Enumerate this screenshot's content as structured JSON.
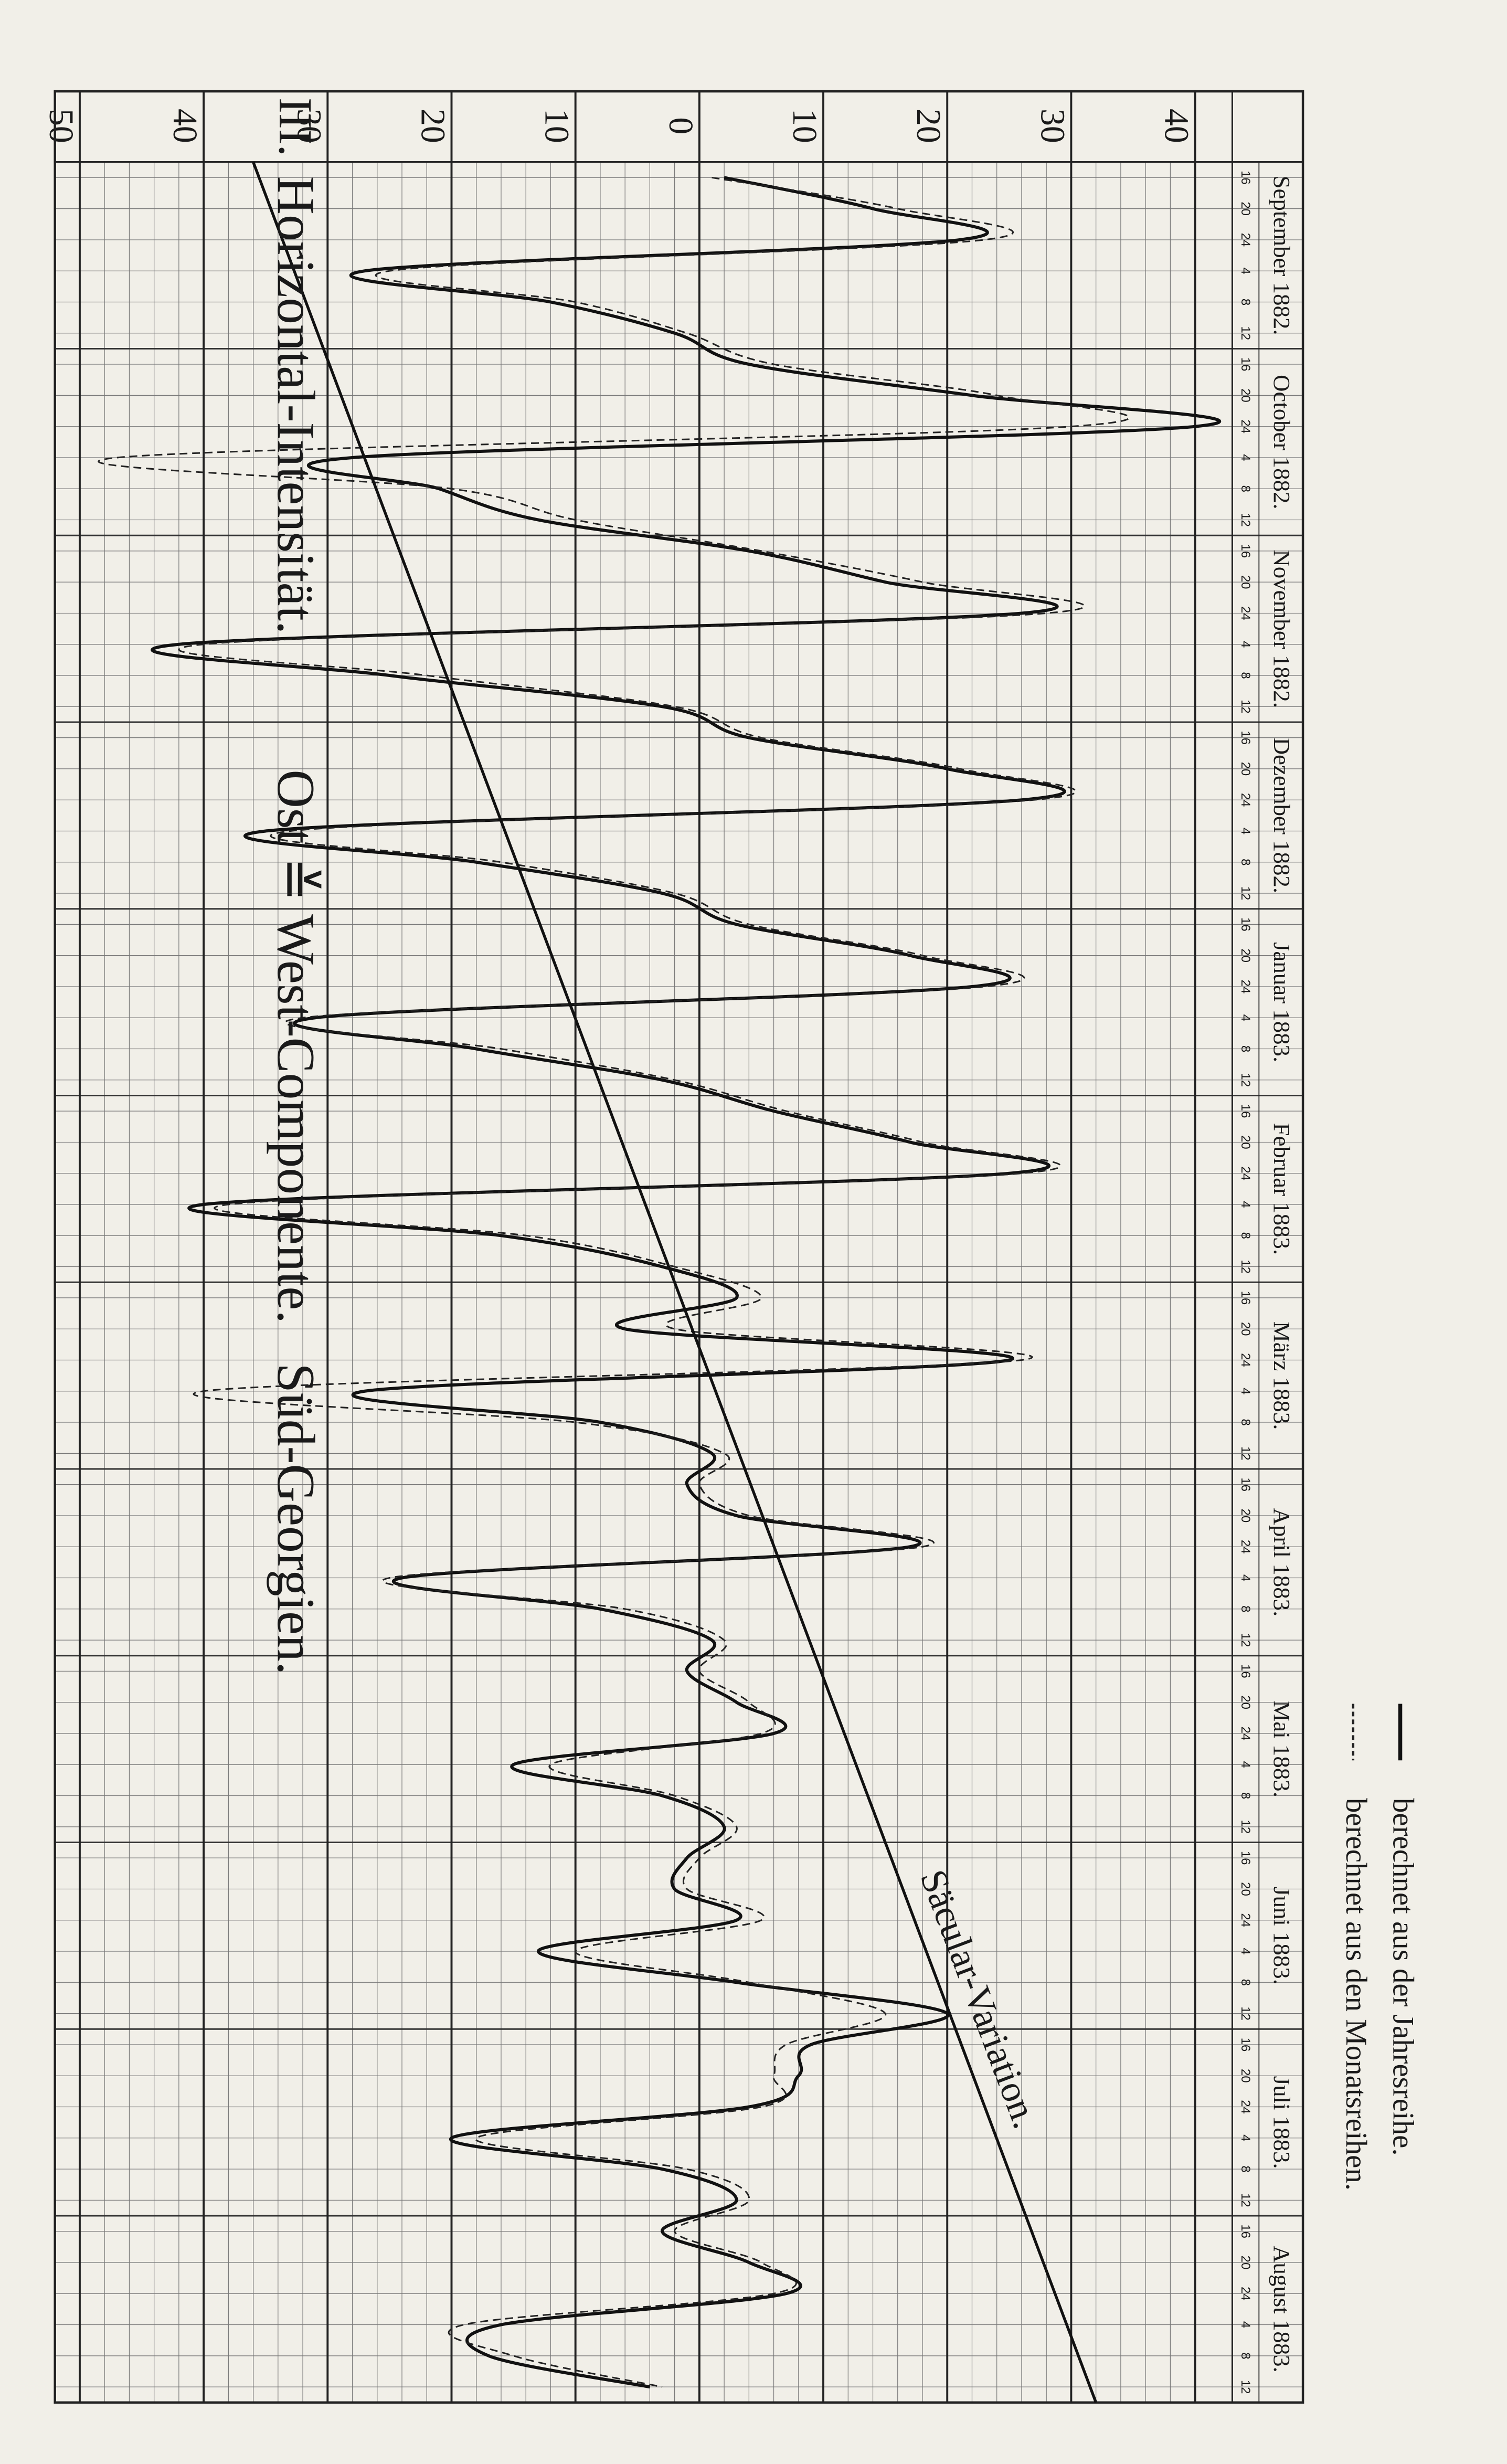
{
  "chart_data": {
    "type": "line",
    "title": "III.",
    "title_parts": [
      "Horizontal-Intensität.",
      "Ost ≚ West-Componente.",
      "Süd-Georgien."
    ],
    "groups": [
      "September 1882.",
      "October 1882.",
      "November 1882.",
      "Dezember 1882.",
      "Januar 1883.",
      "Februar 1883.",
      "März 1883.",
      "April 1883.",
      "Mai 1883.",
      "Juni 1883.",
      "Juli 1883.",
      "August 1883."
    ],
    "categories": [
      "16",
      "20",
      "24",
      "4",
      "8",
      "12",
      "16",
      "20",
      "24",
      "4",
      "8",
      "12",
      "16",
      "20",
      "24",
      "4",
      "8",
      "12",
      "16",
      "20",
      "24",
      "4",
      "8",
      "12",
      "16",
      "20",
      "24",
      "4",
      "8",
      "12",
      "16",
      "20",
      "24",
      "4",
      "8",
      "12",
      "16",
      "20",
      "24",
      "4",
      "8",
      "12",
      "16",
      "20",
      "24",
      "4",
      "8",
      "12",
      "16",
      "20",
      "24",
      "4",
      "8",
      "12",
      "16",
      "20",
      "24",
      "4",
      "8",
      "12",
      "16",
      "20",
      "24",
      "4",
      "8",
      "12",
      "16",
      "20",
      "24",
      "4",
      "8",
      "12"
    ],
    "series": [
      {
        "name": "berechnet aus der Jahresreihe.",
        "style": "solid",
        "color": "#111111",
        "values": [
          2,
          14,
          21,
          -27,
          -12,
          -2,
          4,
          22,
          40,
          -28,
          -21,
          -13,
          4,
          15,
          26,
          -42,
          -25,
          -3,
          4,
          20,
          26,
          -35,
          -18,
          -3,
          3,
          17,
          22,
          -31,
          -18,
          -3,
          6,
          17,
          25,
          -40,
          -16,
          -3,
          3,
          -6,
          25,
          -27,
          -8,
          1,
          -1,
          3,
          17,
          -24,
          -8,
          1,
          -1,
          3,
          6,
          -15,
          -3,
          2,
          -1,
          -2,
          3,
          -13,
          3,
          20,
          9,
          8,
          4,
          -20,
          -3,
          3,
          -3,
          4,
          7,
          -16,
          -17,
          -4
        ]
      },
      {
        "name": "berechnet aus den Monatsreihen.",
        "style": "dashed",
        "color": "#222222",
        "values": [
          1,
          16,
          23,
          -25,
          -10,
          -1,
          6,
          24,
          30,
          -47,
          -20,
          -10,
          5,
          18,
          28,
          -40,
          -22,
          -2,
          5,
          21,
          27,
          -33,
          -16,
          -2,
          4,
          18,
          23,
          -32,
          -16,
          -2,
          7,
          18,
          26,
          -38,
          -14,
          -2,
          5,
          -2,
          26,
          -40,
          -10,
          2,
          0,
          4,
          18,
          -25,
          -6,
          2,
          0,
          4,
          5,
          -12,
          -2,
          3,
          0,
          -1,
          5,
          -10,
          4,
          15,
          7,
          6,
          5,
          -18,
          -1,
          4,
          -2,
          5,
          6,
          -19,
          -15,
          -3
        ]
      }
    ],
    "secular": {
      "label": "Säcular-Variation.",
      "values": [
        -36,
        32
      ]
    },
    "ylim": [
      -52,
      43
    ],
    "yticks": [
      {
        "value": -50,
        "label": "50"
      },
      {
        "value": -40,
        "label": "40"
      },
      {
        "value": -30,
        "label": "30"
      },
      {
        "value": -20,
        "label": "20"
      },
      {
        "value": -10,
        "label": "10"
      },
      0,
      10,
      20,
      30,
      40
    ],
    "grid": true
  }
}
